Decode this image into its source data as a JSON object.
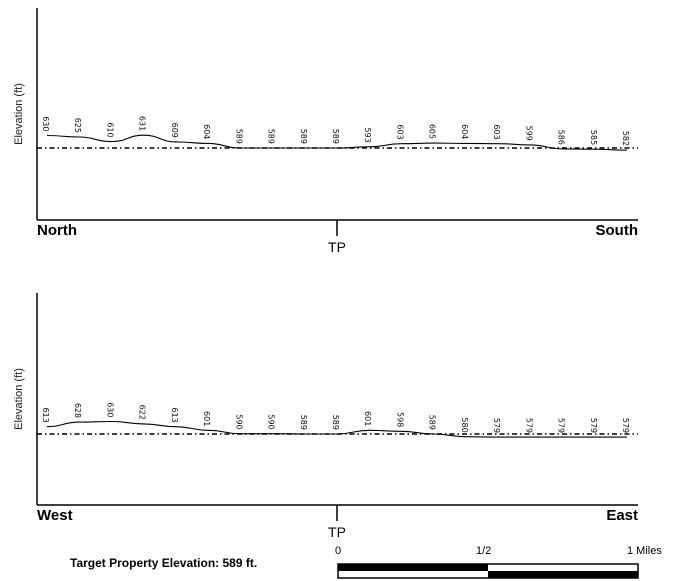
{
  "chart_data": [
    {
      "type": "line",
      "ylabel": "Elevation (ft)",
      "left_label": "North",
      "right_label": "South",
      "center_label": "TP",
      "reference_elevation": 589,
      "values": [
        630,
        625,
        610,
        631,
        609,
        604,
        589,
        589,
        589,
        589,
        593,
        603,
        605,
        604,
        603,
        599,
        586,
        585,
        582
      ]
    },
    {
      "type": "line",
      "ylabel": "Elevation (ft)",
      "left_label": "West",
      "right_label": "East",
      "center_label": "TP",
      "reference_elevation": 589,
      "values": [
        613,
        628,
        630,
        622,
        613,
        601,
        590,
        590,
        589,
        589,
        601,
        598,
        589,
        580,
        579,
        579,
        579,
        579,
        579
      ]
    }
  ],
  "footer": {
    "target_elevation_text": "Target Property Elevation: 589 ft.",
    "scale": {
      "start": "0",
      "mid": "1/2",
      "end": "1 Miles"
    }
  },
  "colors": {
    "line": "#000000"
  }
}
